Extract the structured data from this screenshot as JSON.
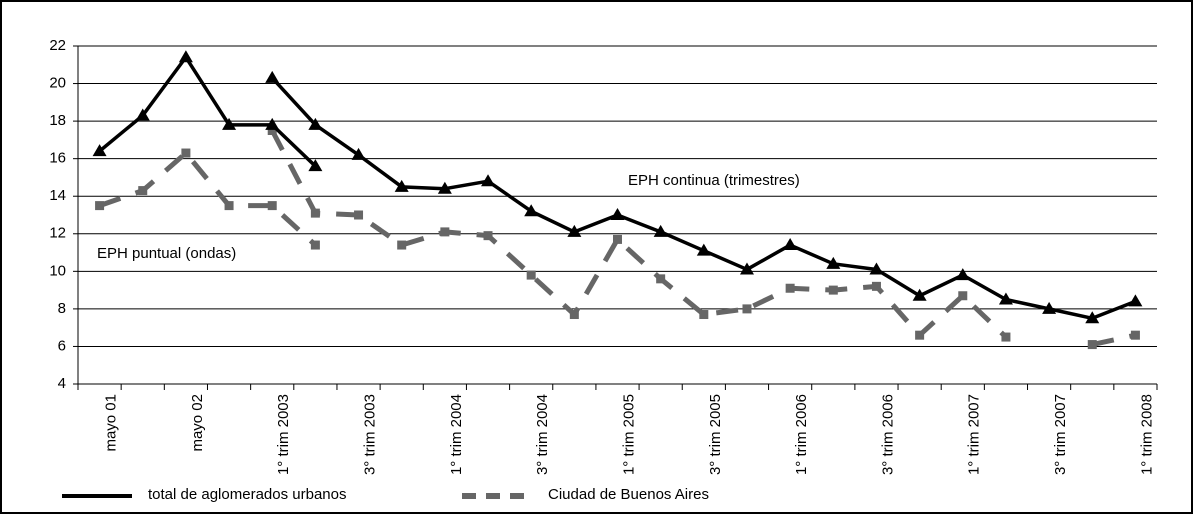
{
  "chart_data": {
    "type": "line",
    "categories": [
      "mayo 01",
      null,
      "mayo 02",
      null,
      "1° trim 2003",
      null,
      "3° trim 2003",
      null,
      "1° trim 2004",
      null,
      "3° trim 2004",
      null,
      "1° trim 2005",
      null,
      "3° trim 2005",
      null,
      "1° trim 2006",
      null,
      "3° trim 2006",
      null,
      "1° trim 2007",
      null,
      "3° trim 2007",
      null,
      "1° trim 2008"
    ],
    "ylim": [
      4,
      22
    ],
    "yticks": [
      4,
      6,
      8,
      10,
      12,
      14,
      16,
      18,
      20,
      22
    ],
    "grid": true,
    "annotations": [
      "EPH continua (trimestres)",
      "EPH puntual (ondas)"
    ],
    "series": [
      {
        "name": "total de aglomerados urbanos",
        "color": "#000000",
        "dashed": false,
        "marker": "triangle",
        "values": [
          null,
          null,
          null,
          null,
          20.3,
          17.8,
          16.2,
          14.5,
          14.4,
          14.8,
          13.2,
          12.1,
          13.0,
          12.1,
          11.1,
          10.1,
          11.4,
          10.4,
          10.1,
          8.7,
          9.8,
          8.5,
          8.0,
          7.5,
          8.4
        ],
        "values_ondas": [
          16.4,
          18.3,
          21.4,
          17.8,
          17.8,
          15.6,
          null,
          null,
          null,
          null,
          null,
          null,
          null,
          null,
          null,
          null,
          null,
          null,
          null,
          null,
          null,
          null,
          null,
          null,
          null
        ]
      },
      {
        "name": "Ciudad de Buenos Aires",
        "color": "#666666",
        "dashed": true,
        "marker": "square",
        "values": [
          null,
          null,
          null,
          null,
          17.5,
          13.1,
          13.0,
          11.4,
          12.1,
          11.9,
          9.8,
          7.7,
          11.7,
          9.6,
          7.7,
          8.0,
          9.1,
          9.0,
          9.2,
          6.6,
          8.7,
          6.5,
          null,
          6.1,
          6.6
        ],
        "values_ondas": [
          13.5,
          14.3,
          16.3,
          13.5,
          13.5,
          11.4,
          null,
          null,
          null,
          null,
          null,
          null,
          null,
          null,
          null,
          null,
          null,
          null,
          null,
          null,
          null,
          null,
          null,
          null,
          null
        ]
      }
    ]
  }
}
